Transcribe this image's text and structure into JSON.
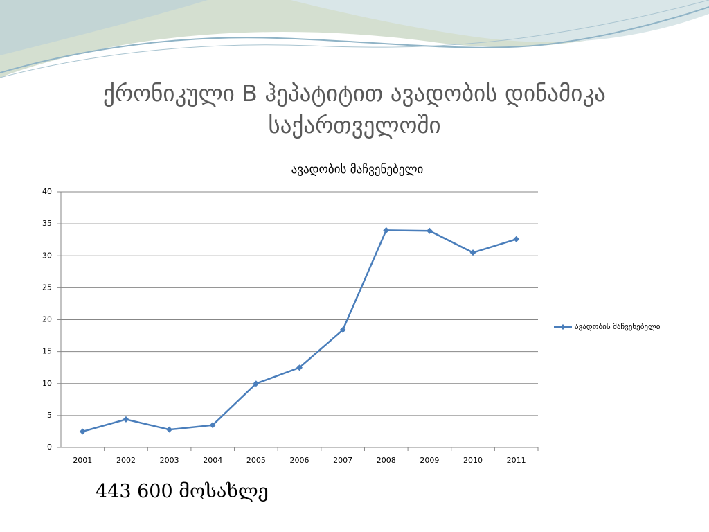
{
  "slide": {
    "title": "ქრონიკული B ჰეპატიტით ავადობის დინამიკა საქართველოში",
    "note": "443 600 მოსახლე"
  },
  "chart_data": {
    "type": "line",
    "title": "ავადობის მაჩვენებელი",
    "categories": [
      "2001",
      "2002",
      "2003",
      "2004",
      "2005",
      "2006",
      "2007",
      "2008",
      "2009",
      "2010",
      "2011"
    ],
    "series": [
      {
        "name": "ავადობის მაჩვენებელი",
        "color": "#4a7ebb",
        "values": [
          2.5,
          4.4,
          2.8,
          3.5,
          10,
          12.5,
          18.4,
          34,
          33.9,
          30.5,
          32.6
        ]
      }
    ],
    "ylim": [
      0,
      40
    ],
    "yticks": [
      0,
      5,
      10,
      15,
      20,
      25,
      30,
      35,
      40
    ],
    "grid": true,
    "legend": "right"
  }
}
